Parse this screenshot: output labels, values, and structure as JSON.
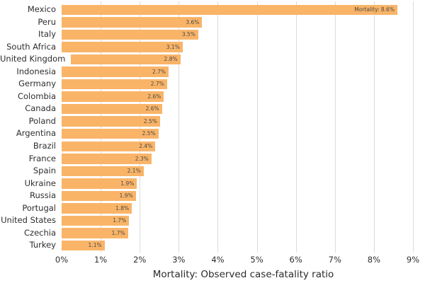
{
  "chart_data": {
    "type": "bar",
    "orientation": "horizontal",
    "xlabel": "Mortality: Observed case-fatality ratio",
    "xlim": [
      0,
      9
    ],
    "x_ticks": [
      "0%",
      "1%",
      "2%",
      "3%",
      "4%",
      "5%",
      "6%",
      "7%",
      "8%",
      "9%"
    ],
    "grid": "vertical",
    "legend": "none",
    "rows": [
      {
        "country": "Mexico",
        "value": 8.6,
        "bar_pct": 8.6,
        "label": "Mortality: 8.6%"
      },
      {
        "country": "Peru",
        "value": 3.6,
        "bar_pct": 3.6,
        "label": "3.6%"
      },
      {
        "country": "Italy",
        "value": 3.5,
        "bar_pct": 3.5,
        "label": "3.5%"
      },
      {
        "country": "South Africa",
        "value": 3.1,
        "bar_pct": 3.1,
        "label": "3.1%"
      },
      {
        "country": "United Kingdom",
        "value": 2.8,
        "bar_pct": 2.8,
        "label": "2.8%"
      },
      {
        "country": "Indonesia",
        "value": 2.7,
        "bar_pct": 2.74,
        "label": "2.7%"
      },
      {
        "country": "Germany",
        "value": 2.7,
        "bar_pct": 2.7,
        "label": "2.7%"
      },
      {
        "country": "Colombia",
        "value": 2.6,
        "bar_pct": 2.62,
        "label": "2.6%"
      },
      {
        "country": "Canada",
        "value": 2.6,
        "bar_pct": 2.57,
        "label": "2.6%"
      },
      {
        "country": "Poland",
        "value": 2.5,
        "bar_pct": 2.52,
        "label": "2.5%"
      },
      {
        "country": "Argentina",
        "value": 2.5,
        "bar_pct": 2.48,
        "label": "2.5%"
      },
      {
        "country": "Brazil",
        "value": 2.4,
        "bar_pct": 2.4,
        "label": "2.4%"
      },
      {
        "country": "France",
        "value": 2.3,
        "bar_pct": 2.3,
        "label": "2.3%"
      },
      {
        "country": "Spain",
        "value": 2.1,
        "bar_pct": 2.1,
        "label": "2.1%"
      },
      {
        "country": "Ukraine",
        "value": 1.9,
        "bar_pct": 1.93,
        "label": "1.9%"
      },
      {
        "country": "Russia",
        "value": 1.9,
        "bar_pct": 1.9,
        "label": "1.9%"
      },
      {
        "country": "Portugal",
        "value": 1.8,
        "bar_pct": 1.8,
        "label": "1.8%"
      },
      {
        "country": "United States",
        "value": 1.7,
        "bar_pct": 1.73,
        "label": "1.7%"
      },
      {
        "country": "Czechia",
        "value": 1.7,
        "bar_pct": 1.7,
        "label": "1.7%"
      },
      {
        "country": "Turkey",
        "value": 1.1,
        "bar_pct": 1.1,
        "label": "1.1%"
      }
    ],
    "colors": {
      "bar_fill": "#f9b468",
      "gridline": "#dcdcdc",
      "value_text": "#4a4a46",
      "axis_text": "#2e2e2e",
      "background": "#ffffff"
    }
  }
}
